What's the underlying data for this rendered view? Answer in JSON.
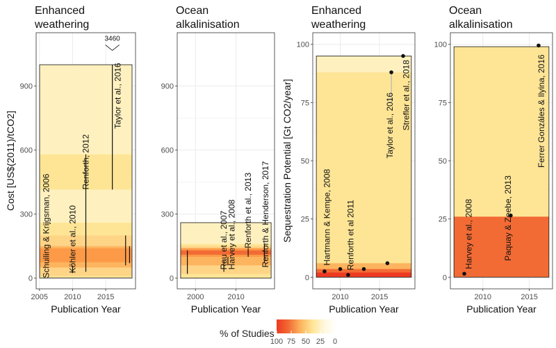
{
  "chart_data": [
    {
      "type": "scatter",
      "title": [
        "Enhanced",
        "weathering"
      ],
      "xlabel": "Publication Year",
      "ylabel": "Cost [US$(2011)/tCO2]",
      "xlim": [
        2004.5,
        2019.5
      ],
      "ylim": [
        -50,
        1150
      ],
      "xticks": [
        2005,
        2010,
        2015
      ],
      "yticks": [
        0,
        300,
        600,
        900
      ],
      "box": [
        1,
        1000
      ],
      "bands": [
        {
          "y0": 1,
          "y1": 1000,
          "color": "#fff1bf"
        },
        {
          "y0": 415,
          "y1": 580,
          "color": "#fee596"
        },
        {
          "y0": 1,
          "y1": 260,
          "color": "#fee596"
        },
        {
          "y0": 10,
          "y1": 200,
          "color": "#fed487"
        },
        {
          "y0": 50,
          "y1": 150,
          "color": "#fdb45e"
        },
        {
          "y0": 75,
          "y1": 140,
          "color": "#fc9a48"
        }
      ],
      "ranges": [
        {
          "x": 2010,
          "y0": 24,
          "y1": 60
        },
        {
          "x": 2012,
          "y0": 30,
          "y1": 580
        },
        {
          "x": 2016,
          "y0": 415,
          "y1": 1000
        },
        {
          "x": 2018,
          "y0": 60,
          "y1": 200
        },
        {
          "x": 2018.6,
          "y0": 70,
          "y1": 150
        }
      ],
      "labels": [
        {
          "text": "Schuiling & Krijgsman, 2006",
          "x": 2006,
          "y": 0
        },
        {
          "text": "Köhler et al., 2010",
          "x": 2010,
          "y": 24
        },
        {
          "text": "Renforth, 2012",
          "x": 2012,
          "y": 415
        },
        {
          "text": "Taylor et al., 2016",
          "x": 2016.8,
          "y": 700
        }
      ],
      "outlier": {
        "text": "3460",
        "x": 2016,
        "y": 1080
      }
    },
    {
      "type": "scatter",
      "title": [
        "Ocean",
        "alkalinisation"
      ],
      "xlabel": "Publication Year",
      "ylabel": "",
      "xlim": [
        1995.5,
        2019.5
      ],
      "ylim": [
        -50,
        1150
      ],
      "xticks": [
        2000,
        2010
      ],
      "yticks": [
        0,
        300,
        600,
        900
      ],
      "box": [
        0,
        260
      ],
      "bands": [
        {
          "y0": 0,
          "y1": 260,
          "color": "#fff1bf"
        },
        {
          "y0": 0,
          "y1": 160,
          "color": "#fee596"
        },
        {
          "y0": 20,
          "y1": 150,
          "color": "#fed487"
        },
        {
          "y0": 60,
          "y1": 140,
          "color": "#fdb45e"
        },
        {
          "y0": 100,
          "y1": 140,
          "color": "#fc9a48"
        },
        {
          "y0": 110,
          "y1": 130,
          "color": "#f26b34"
        }
      ],
      "ranges": [
        {
          "x": 1998,
          "y0": 20,
          "y1": 130
        },
        {
          "x": 2007,
          "y0": 30,
          "y1": 80
        },
        {
          "x": 2008,
          "y0": 60,
          "y1": 100
        },
        {
          "x": 2013,
          "y0": 100,
          "y1": 140
        },
        {
          "x": 2017,
          "y0": 75,
          "y1": 160
        }
      ],
      "labels": [
        {
          "text": "Rau et al., 2007",
          "x": 2007,
          "y": 40
        },
        {
          "text": "Harvey et al., 2008",
          "x": 2009,
          "y": 40
        },
        {
          "text": "Renforth et al., 2013",
          "x": 2013,
          "y": 140
        },
        {
          "text": "Renforth & Henderson, 2017",
          "x": 2017.3,
          "y": 50
        }
      ]
    },
    {
      "type": "scatter",
      "title": [
        "Enhanced",
        "weathering"
      ],
      "xlabel": "Publication Year",
      "ylabel": "Sequestration Potential [Gt CO2/year]",
      "xlim": [
        2006.5,
        2019.5
      ],
      "ylim": [
        -5,
        105
      ],
      "xticks": [
        2010,
        2015
      ],
      "yticks": [
        0,
        25,
        50,
        75,
        100
      ],
      "box": [
        0,
        95
      ],
      "bands": [
        {
          "y0": 0,
          "y1": 95,
          "color": "#fff1bf"
        },
        {
          "y0": 0,
          "y1": 88,
          "color": "#fee596"
        },
        {
          "y0": 0,
          "y1": 6,
          "color": "#fdb45e"
        },
        {
          "y0": 0,
          "y1": 3.5,
          "color": "#f26b34"
        },
        {
          "y0": 0,
          "y1": 2,
          "color": "#ee3a22"
        }
      ],
      "points": [
        {
          "x": 2008,
          "y": 2.5
        },
        {
          "x": 2010,
          "y": 3.5
        },
        {
          "x": 2011,
          "y": 1
        },
        {
          "x": 2013,
          "y": 3.5
        },
        {
          "x": 2016,
          "y": 6
        },
        {
          "x": 2016.5,
          "y": 88
        },
        {
          "x": 2018,
          "y": 95
        }
      ],
      "connectors": [
        {
          "x0": 2016.5,
          "y0": 88,
          "x1": 2016.5,
          "y1": 75
        }
      ],
      "labels": [
        {
          "text": "Hartmann & Kempe, 2008",
          "x": 2008.3,
          "y": 5
        },
        {
          "text": "Renforth et al 2011",
          "x": 2011.3,
          "y": 3
        },
        {
          "text": "Taylor et al., 2016",
          "x": 2016.3,
          "y": 51
        },
        {
          "text": "Strefler et al., 2018",
          "x": 2018.4,
          "y": 63
        }
      ]
    },
    {
      "type": "scatter",
      "title": [
        "Ocean",
        "alkalinisation"
      ],
      "xlabel": "Publication Year",
      "ylabel": "",
      "xlim": [
        2006.5,
        2017.5
      ],
      "ylim": [
        -5,
        105
      ],
      "xticks": [
        2010,
        2015
      ],
      "yticks": [
        0,
        25,
        50,
        75,
        100
      ],
      "box": [
        0,
        99
      ],
      "bands": [
        {
          "y0": 0,
          "y1": 99,
          "color": "#fee596"
        },
        {
          "y0": 0,
          "y1": 26,
          "color": "#f26b34"
        }
      ],
      "points": [
        {
          "x": 2008,
          "y": 1.5
        },
        {
          "x": 2013,
          "y": 26.5
        },
        {
          "x": 2016,
          "y": 99.5
        }
      ],
      "labels": [
        {
          "text": "Harvey et al., 2008",
          "x": 2008.5,
          "y": 3.5
        },
        {
          "text": "Paquay & Zeebe, 2013",
          "x": 2012.7,
          "y": 7
        },
        {
          "text": "Ferrer Gonzáles & Ilyina, 2016",
          "x": 2016.3,
          "y": 47
        }
      ]
    }
  ],
  "legend": {
    "title": "% of Studies",
    "tick_labels": [
      "100",
      "75",
      "50",
      "25",
      "0"
    ],
    "colors": [
      "#ee3a22",
      "#f26b34",
      "#fdb45e",
      "#fee596",
      "#fff8e0",
      "#ffffff"
    ]
  },
  "style": {
    "grid_color": "#ebebeb",
    "axis_text_color": "#4d4d4d",
    "point_color": "#111111",
    "range_color": "#111111",
    "connector_color": "#b5b5b5"
  }
}
